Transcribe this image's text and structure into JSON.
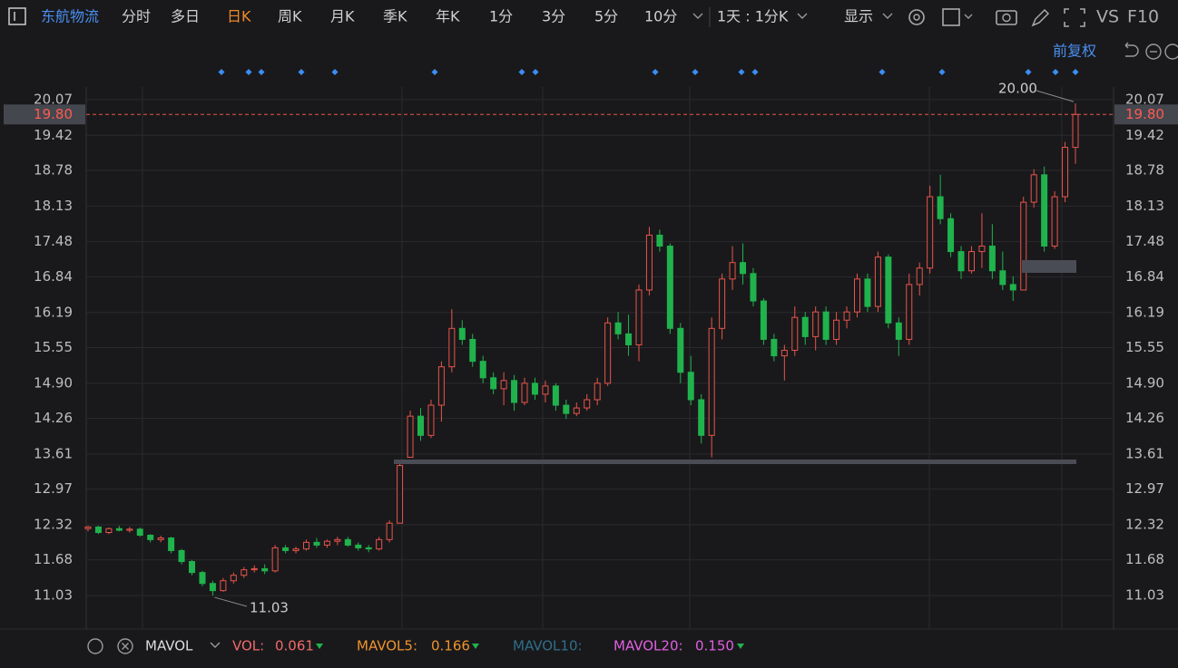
{
  "toolbar": {
    "stock_name": "东航物流",
    "tabs": [
      "分时",
      "多日",
      "日K",
      "周K",
      "月K",
      "季K",
      "年K",
      "1分",
      "3分",
      "5分",
      "10分"
    ],
    "active_tab": 2,
    "period_select": "1天 : 1分K",
    "display": "显示",
    "vs": "VS",
    "f10": "F10",
    "adjust": "前复权"
  },
  "chart_data": {
    "type": "candlestick",
    "up_color": "#e9544b",
    "down_color": "#20b34d",
    "ylim": [
      10.42,
      20.3
    ],
    "yticks": [
      20.07,
      19.42,
      18.78,
      18.13,
      17.48,
      16.84,
      16.19,
      15.55,
      {
        "value": 14.9,
        "label": "14.90"
      },
      14.26,
      13.61,
      12.97,
      12.32,
      11.68,
      11.03
    ],
    "grid": true,
    "last_price": {
      "value": 19.8,
      "label": "19.80"
    },
    "max_label": "20.00",
    "min_label": "11.03",
    "open": [
      12.25,
      12.28,
      12.18,
      12.25,
      12.22,
      12.24,
      12.13,
      12.05,
      12.08,
      11.85,
      11.65,
      11.45,
      11.25,
      11.12,
      11.3,
      11.4,
      11.5,
      11.52,
      11.48,
      11.9,
      11.85,
      11.88,
      12.0,
      11.95,
      12.02,
      12.05,
      11.95,
      11.9,
      11.88,
      12.05,
      12.35,
      13.55,
      14.3,
      13.95,
      14.5,
      15.2,
      15.9,
      15.7,
      15.3,
      15.0,
      14.8,
      14.95,
      14.55,
      14.9,
      14.7,
      14.85,
      14.5,
      14.35,
      14.45,
      14.6,
      14.9,
      16.0,
      15.8,
      15.6,
      16.6,
      17.6,
      17.4,
      15.9,
      15.1,
      14.6,
      13.95,
      15.9,
      16.8,
      17.1,
      16.9,
      16.4,
      15.7,
      15.4,
      15.5,
      16.1,
      15.75,
      16.2,
      15.7,
      16.05,
      16.2,
      16.8,
      16.3,
      17.2,
      16.0,
      15.7,
      16.7,
      17.0,
      18.3,
      17.9,
      17.3,
      16.95,
      17.3,
      17.4,
      16.95,
      16.7,
      16.6,
      18.2,
      18.7,
      17.4,
      18.3,
      19.2
    ],
    "high": [
      12.3,
      12.3,
      12.27,
      12.3,
      12.28,
      12.27,
      12.15,
      12.12,
      12.1,
      11.88,
      11.68,
      11.48,
      11.3,
      11.35,
      11.45,
      11.55,
      11.58,
      11.6,
      11.95,
      11.95,
      11.92,
      12.05,
      12.08,
      12.05,
      12.1,
      12.1,
      12.0,
      11.95,
      12.1,
      12.4,
      13.45,
      14.4,
      14.45,
      14.6,
      15.3,
      16.25,
      16.05,
      15.8,
      15.4,
      15.1,
      15.1,
      15.05,
      15.0,
      15.0,
      14.95,
      14.9,
      14.6,
      14.55,
      14.7,
      15.0,
      16.1,
      16.2,
      16.15,
      16.7,
      17.75,
      17.7,
      17.45,
      16.0,
      15.4,
      14.7,
      16.1,
      16.9,
      17.4,
      17.45,
      17.0,
      16.45,
      15.8,
      15.6,
      16.3,
      16.2,
      16.3,
      16.3,
      16.2,
      16.3,
      16.9,
      16.9,
      17.3,
      17.25,
      16.1,
      16.9,
      17.1,
      18.5,
      18.7,
      18.0,
      17.4,
      17.4,
      18.0,
      17.8,
      17.3,
      16.85,
      18.3,
      18.8,
      18.85,
      18.4,
      19.3,
      20.0
    ],
    "low": [
      12.2,
      12.15,
      12.15,
      12.2,
      12.18,
      12.1,
      12.0,
      12.0,
      11.8,
      11.6,
      11.4,
      11.2,
      11.03,
      11.1,
      11.25,
      11.35,
      11.45,
      11.42,
      11.45,
      11.8,
      11.8,
      11.85,
      11.9,
      11.9,
      11.95,
      11.92,
      11.85,
      11.82,
      11.85,
      12.0,
      12.35,
      13.55,
      13.85,
      13.9,
      14.2,
      15.1,
      15.6,
      15.2,
      14.9,
      14.7,
      14.5,
      14.4,
      14.5,
      14.6,
      14.55,
      14.4,
      14.25,
      14.3,
      14.4,
      14.5,
      14.85,
      15.7,
      15.4,
      15.3,
      16.5,
      17.3,
      15.8,
      14.9,
      14.5,
      13.8,
      13.55,
      15.7,
      16.6,
      16.7,
      16.3,
      15.6,
      15.3,
      14.95,
      15.4,
      15.6,
      15.5,
      15.6,
      15.6,
      15.9,
      16.1,
      16.2,
      16.2,
      15.9,
      15.4,
      15.6,
      16.5,
      16.9,
      17.8,
      17.2,
      16.8,
      16.9,
      17.0,
      16.8,
      16.6,
      16.4,
      16.6,
      18.1,
      17.3,
      17.35,
      18.2,
      18.9
    ],
    "close": [
      12.28,
      12.18,
      12.25,
      12.22,
      12.24,
      12.13,
      12.05,
      12.08,
      11.85,
      11.65,
      11.45,
      11.25,
      11.12,
      11.3,
      11.4,
      11.5,
      11.52,
      11.48,
      11.9,
      11.85,
      11.88,
      12.0,
      11.95,
      12.02,
      12.05,
      11.95,
      11.9,
      11.88,
      12.05,
      12.35,
      13.4,
      14.3,
      13.95,
      14.5,
      15.2,
      15.9,
      15.7,
      15.3,
      15.0,
      14.8,
      14.95,
      14.55,
      14.9,
      14.7,
      14.85,
      14.5,
      14.35,
      14.45,
      14.6,
      14.9,
      16.0,
      15.8,
      15.6,
      16.6,
      17.6,
      17.4,
      15.9,
      15.1,
      14.6,
      13.95,
      15.9,
      16.8,
      17.1,
      16.9,
      16.4,
      15.7,
      15.4,
      15.5,
      16.1,
      15.75,
      16.2,
      15.7,
      16.05,
      16.2,
      16.8,
      16.3,
      17.2,
      16.0,
      15.7,
      16.7,
      17.0,
      18.3,
      17.9,
      17.3,
      16.95,
      17.3,
      17.4,
      16.95,
      16.7,
      16.6,
      18.2,
      18.7,
      17.4,
      18.3,
      19.2,
      19.8
    ]
  },
  "indicator_bar": {
    "name": "MAVOL",
    "vol_label": "VOL:",
    "vol_value": "0.061",
    "ma5_label": "MAVOL5:",
    "ma5_value": "0.166",
    "ma10_label": "MAVOL10:",
    "ma20_label": "MAVOL20:",
    "ma20_value": "0.150"
  }
}
